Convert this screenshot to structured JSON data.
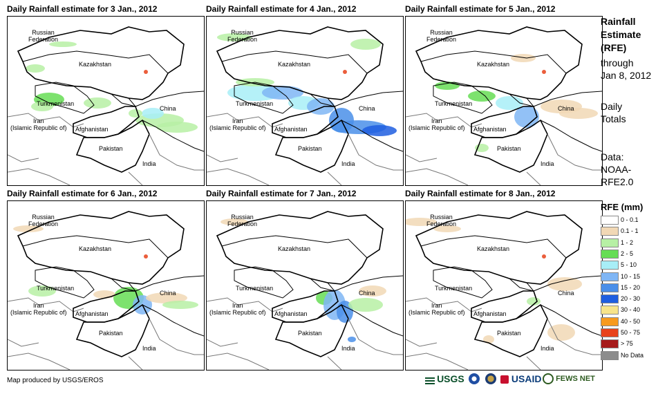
{
  "panels": [
    {
      "title": "Daily Rainfall estimate for 3 Jan., 2012",
      "map": "map-3jan"
    },
    {
      "title": "Daily Rainfall estimate for 4 Jan., 2012",
      "map": "map-4jan"
    },
    {
      "title": "Daily Rainfall estimate for 5 Jan., 2012",
      "map": "map-5jan"
    },
    {
      "title": "Daily Rainfall estimate for 6 Jan., 2012",
      "map": "map-6jan"
    },
    {
      "title": "Daily Rainfall estimate for 7 Jan., 2012",
      "map": "map-7jan"
    },
    {
      "title": "Daily Rainfall estimate for 8 Jan., 2012",
      "map": "map-8jan"
    }
  ],
  "map_labels": {
    "russia": "Russian\nFederation",
    "kazakhstan": "Kazakhstan",
    "turkmenistan": "Turkmenistan",
    "iran": "Iran\n(Islamic Republic of)",
    "afghanistan": "Afghanistan",
    "pakistan": "Pakistan",
    "china": "China",
    "india": "India"
  },
  "sidebar": {
    "title_line1": "Rainfall",
    "title_line2": "Estimate",
    "title_line3": "(RFE)",
    "through": "through",
    "date": "Jan 8, 2012",
    "daily1": "Daily",
    "daily2": "Totals",
    "data1": "Data:",
    "data2": "NOAA-",
    "data3": "RFE2.0"
  },
  "legend": {
    "title": "RFE (mm)",
    "items": [
      {
        "label": "0 - 0.1",
        "color": "#ffffff"
      },
      {
        "label": "0.1 - 1",
        "color": "#f1d8b5"
      },
      {
        "label": "1 - 2",
        "color": "#b7f0a5"
      },
      {
        "label": "2 - 5",
        "color": "#66dd55"
      },
      {
        "label": "5 - 10",
        "color": "#a8eef7"
      },
      {
        "label": "10 - 15",
        "color": "#7fb6f5"
      },
      {
        "label": "15 - 20",
        "color": "#4a8fe9"
      },
      {
        "label": "20 - 30",
        "color": "#1e5ee0"
      },
      {
        "label": "30 - 40",
        "color": "#f7e48a"
      },
      {
        "label": "40 - 50",
        "color": "#f79a1e"
      },
      {
        "label": "50 - 75",
        "color": "#e8421a"
      },
      {
        "label": "> 75",
        "color": "#a61b1b"
      },
      {
        "label": "No Data",
        "color": "#8c8c8c"
      }
    ]
  },
  "footer": {
    "credit": "Map produced by USGS/EROS",
    "usgs": "USGS",
    "usaid": "USAID",
    "fewsnet": "FEWS NET"
  }
}
